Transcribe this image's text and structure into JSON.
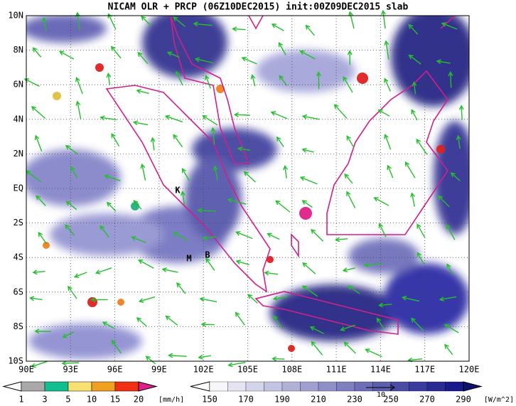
{
  "title": "NICAM OLR + PRCP (06Z10DEC2015) init:00Z09DEC2015 slab",
  "lat_labels": [
    "10N",
    "8N",
    "6N",
    "4N",
    "2N",
    "EQ",
    "2S",
    "4S",
    "6S",
    "8S",
    "10S"
  ],
  "lon_labels": [
    "90E",
    "93E",
    "96E",
    "99E",
    "102E",
    "105E",
    "108E",
    "111E",
    "114E",
    "117E",
    "120E"
  ],
  "station_labels": [
    "K",
    "M",
    "B"
  ],
  "precip_colorbar": {
    "labels": [
      1,
      3,
      5,
      10,
      15,
      20
    ],
    "unit": "[mm/h]"
  },
  "olr_colorbar": {
    "labels": [
      150,
      170,
      190,
      210,
      230,
      250,
      270,
      290
    ],
    "unit": "[W/m^2]"
  },
  "vector_reference": "10"
}
